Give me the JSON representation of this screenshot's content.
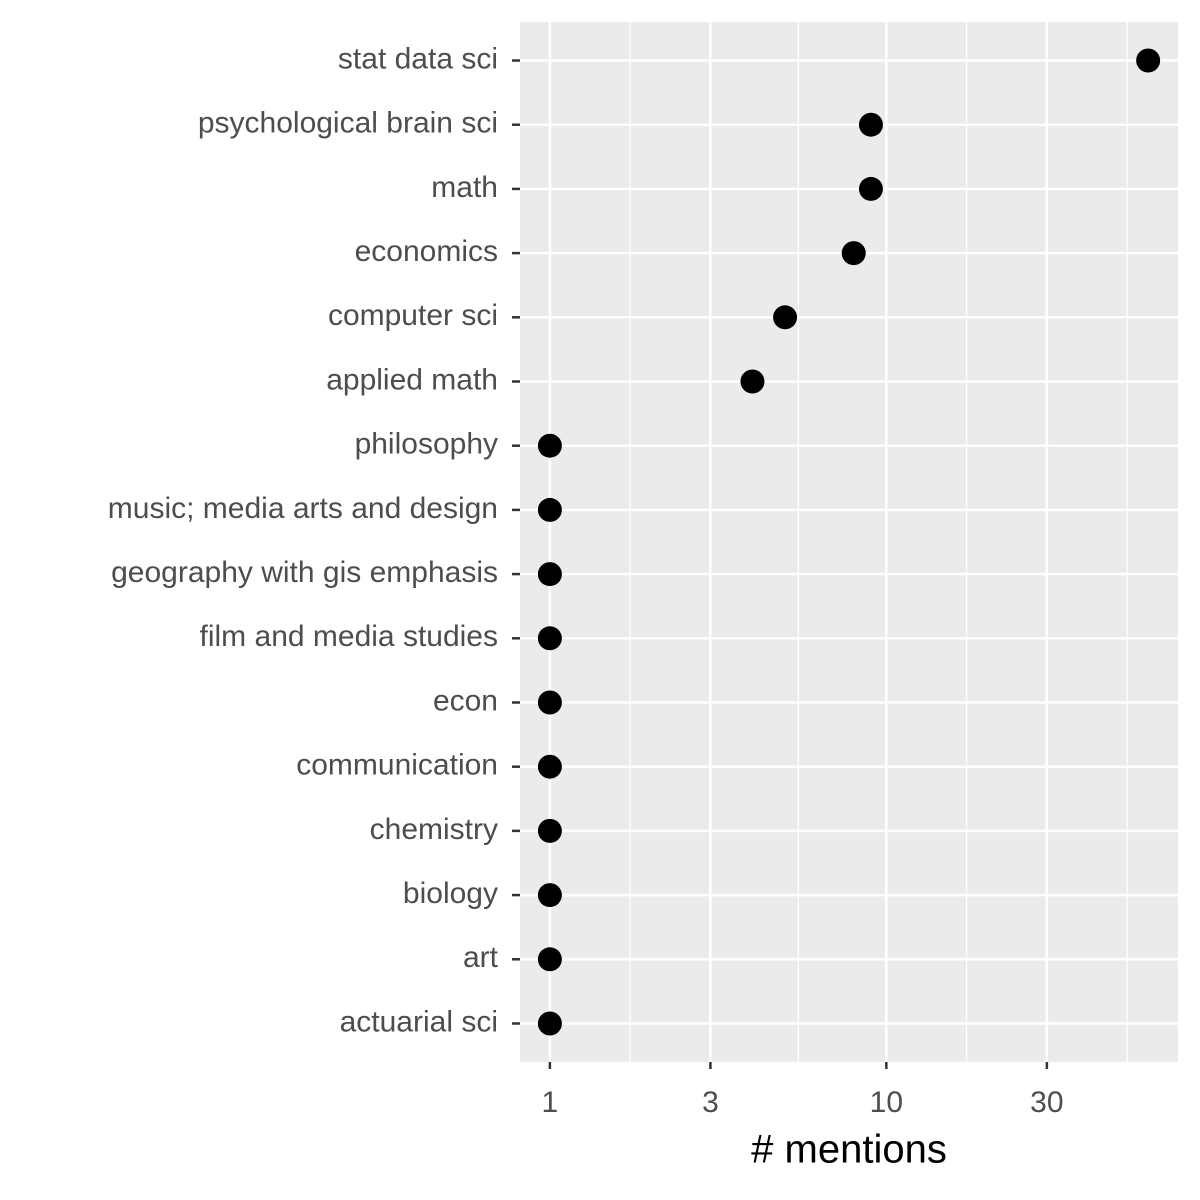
{
  "chart_data": {
    "type": "dot",
    "x_label": "# mentions",
    "categories": [
      "stat data sci",
      "psychological brain sci",
      "math",
      "economics",
      "computer sci",
      "applied math",
      "philosophy",
      "music; media arts and design",
      "geography with gis emphasis",
      "film and media studies",
      "econ",
      "communication",
      "chemistry",
      "biology",
      "art",
      "actuarial sci"
    ],
    "values": [
      60,
      9,
      9,
      8,
      5,
      4,
      1,
      1,
      1,
      1,
      1,
      1,
      1,
      1,
      1,
      1
    ],
    "color": "#000000",
    "xlim": [
      0.815,
      73.6
    ],
    "xticks": [
      1,
      3,
      10,
      30
    ],
    "xlog": true,
    "grid": true
  }
}
